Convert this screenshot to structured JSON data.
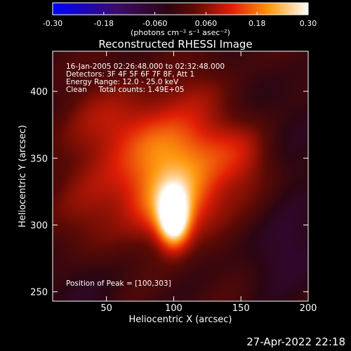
{
  "colorbar": {
    "ticks": [
      "-0.30",
      "-0.18",
      "-0.060",
      "0.060",
      "0.18",
      "0.30"
    ],
    "tick_values": [
      -0.3,
      -0.18,
      -0.06,
      0.06,
      0.18,
      0.3
    ],
    "range": [
      -0.3,
      0.3
    ],
    "unit_label": "(photons cm⁻² s⁻¹ asec⁻²)"
  },
  "plot": {
    "title": "Reconstructed RHESSI Image",
    "xlabel": "Heliocentric X (arcsec)",
    "ylabel": "Heliocentric Y (arcsec)",
    "x_ticks": [
      "50",
      "100",
      "150",
      "200"
    ],
    "x_tick_values": [
      50,
      100,
      150,
      200
    ],
    "y_ticks": [
      "250",
      "300",
      "350",
      "400"
    ],
    "y_tick_values": [
      250,
      300,
      350,
      400
    ],
    "xlim": [
      10,
      200
    ],
    "ylim": [
      243,
      430
    ],
    "info_lines": [
      "16-Jan-2005 02:26:48.000 to 02:32:48.000",
      "Detectors: 3F 4F 5F 6F 7F 8F, Att 1",
      "Energy Range: 12.0 - 25.0 keV",
      "Clean     Total counts: 1.49E+05"
    ],
    "peak_label": "Position of Peak = [100,303]"
  },
  "footer": {
    "timestamp": "27-Apr-2022 22:18"
  },
  "chart_data": {
    "type": "heatmap",
    "title": "Reconstructed RHESSI Image",
    "xlabel": "Heliocentric X (arcsec)",
    "ylabel": "Heliocentric Y (arcsec)",
    "xlim": [
      10,
      200
    ],
    "ylim": [
      243,
      430
    ],
    "colorscale_range": [
      -0.3,
      0.3
    ],
    "peak": {
      "x": 100,
      "y": 303
    },
    "blobs": [
      {
        "x": 100,
        "y": 303,
        "amp": 0.3,
        "sx": 8,
        "sy": 14
      },
      {
        "x": 105,
        "y": 318,
        "amp": 0.14,
        "sx": 22,
        "sy": 20
      },
      {
        "x": 85,
        "y": 330,
        "amp": 0.1,
        "sx": 30,
        "sy": 22
      },
      {
        "x": 110,
        "y": 358,
        "amp": 0.12,
        "sx": 35,
        "sy": 18
      },
      {
        "x": 60,
        "y": 378,
        "amp": 0.08,
        "sx": 25,
        "sy": 20
      },
      {
        "x": 130,
        "y": 395,
        "amp": 0.06,
        "sx": 30,
        "sy": 18
      },
      {
        "x": 150,
        "y": 345,
        "amp": 0.05,
        "sx": 18,
        "sy": 20
      },
      {
        "x": 40,
        "y": 300,
        "amp": 0.06,
        "sx": 18,
        "sy": 30
      },
      {
        "x": 185,
        "y": 280,
        "amp": -0.06,
        "sx": 25,
        "sy": 25
      },
      {
        "x": 30,
        "y": 255,
        "amp": -0.05,
        "sx": 25,
        "sy": 25
      },
      {
        "x": 160,
        "y": 395,
        "amp": -0.05,
        "sx": 20,
        "sy": 20
      },
      {
        "x": 185,
        "y": 360,
        "amp": -0.04,
        "sx": 18,
        "sy": 30
      }
    ]
  }
}
